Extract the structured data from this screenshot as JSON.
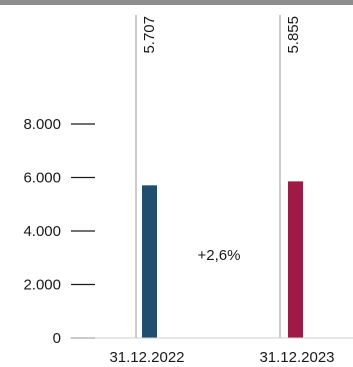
{
  "chart_data": {
    "type": "bar",
    "categories": [
      "31.12.2022",
      "31.12.2023"
    ],
    "values": [
      5707,
      5855
    ],
    "value_labels": [
      "5.707",
      "5.855"
    ],
    "bar_colors": [
      "#1f4e6e",
      "#a11a45"
    ],
    "yticks": [
      0,
      2000,
      4000,
      6000,
      8000
    ],
    "ytick_labels": [
      "0",
      "2.000",
      "4.000",
      "6.000",
      "8.000"
    ],
    "ylim": [
      0,
      8000
    ],
    "annotation": "+2,6%",
    "grid": false,
    "title": "",
    "xlabel": "",
    "ylabel": ""
  }
}
